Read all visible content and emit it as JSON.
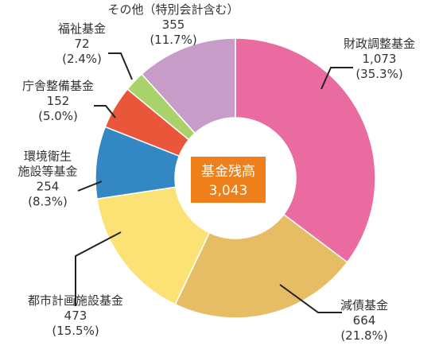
{
  "chart_data": {
    "type": "pie",
    "style": "donut",
    "center_label": "基金残高",
    "center_value": "3,043",
    "center_color": "#EE7F1B",
    "slices": [
      {
        "name": "財政調整基金",
        "value": 1073,
        "value_label": "1,073",
        "percent_label": "(35.3%)",
        "color": "#E96BA0"
      },
      {
        "name": "減債基金",
        "value": 664,
        "value_label": "664",
        "percent_label": "(21.8%)",
        "color": "#E6BD64"
      },
      {
        "name": "都市計画施設基金",
        "value": 473,
        "value_label": "473",
        "percent_label": "(15.5%)",
        "color": "#FCE274"
      },
      {
        "name": "環境衛生施設等基金",
        "value": 254,
        "value_label": "254",
        "percent_label": "(8.3%)",
        "color": "#3388C3",
        "name_lines": [
          "環境衛生",
          "施設等基金"
        ]
      },
      {
        "name": "庁舎整備基金",
        "value": 152,
        "value_label": "152",
        "percent_label": "(5.0%)",
        "color": "#E9563A"
      },
      {
        "name": "福祉基金",
        "value": 72,
        "value_label": "72",
        "percent_label": "(2.4%)",
        "color": "#A9D36A"
      },
      {
        "name": "その他（特別会計含む）",
        "value": 355,
        "value_label": "355",
        "percent_label": "(11.7%)",
        "color": "#C79CC8"
      }
    ]
  }
}
